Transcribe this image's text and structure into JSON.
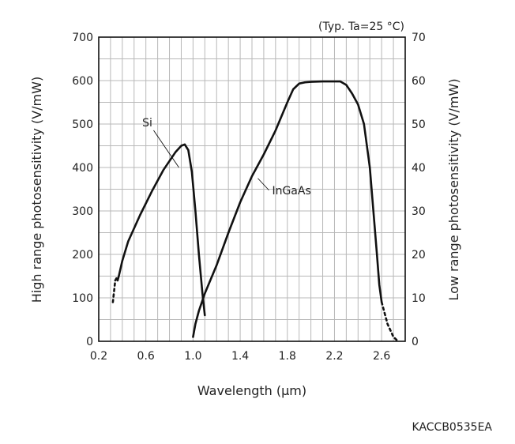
{
  "chart_data": {
    "type": "line",
    "condition_note": "(Typ. Ta=25 °C)",
    "xlabel": "Wavelength (µm)",
    "ylabel_left": "High range photosensitivity (V/mW)",
    "ylabel_right": "Low range photosensitivity (V/mW)",
    "xlim": [
      0.2,
      2.8
    ],
    "ylim_left": [
      0,
      700
    ],
    "ylim_right": [
      0,
      70
    ],
    "x_ticks": [
      "0.2",
      "0.6",
      "1.0",
      "1.4",
      "1.8",
      "2.2",
      "2.6"
    ],
    "x_tick_values": [
      0.2,
      0.6,
      1.0,
      1.4,
      1.8,
      2.2,
      2.6
    ],
    "y_ticks_left": [
      "0",
      "100",
      "200",
      "300",
      "400",
      "500",
      "600",
      "700"
    ],
    "y_tick_values_left": [
      0,
      100,
      200,
      300,
      400,
      500,
      600,
      700
    ],
    "y_ticks_right": [
      "0",
      "10",
      "20",
      "30",
      "40",
      "50",
      "60",
      "70"
    ],
    "y_tick_values_right": [
      0,
      10,
      20,
      30,
      40,
      50,
      60,
      70
    ],
    "grid": true,
    "series": [
      {
        "name": "Si",
        "axis": "left",
        "dashed_start": [
          [
            0.32,
            90
          ],
          [
            0.34,
            140
          ]
        ],
        "x": [
          0.34,
          0.35,
          0.36,
          0.37,
          0.4,
          0.45,
          0.55,
          0.65,
          0.75,
          0.85,
          0.9,
          0.93,
          0.96,
          0.99,
          1.02,
          1.05,
          1.08,
          1.1
        ],
        "y": [
          140,
          145,
          140,
          150,
          185,
          230,
          290,
          345,
          395,
          435,
          450,
          453,
          440,
          390,
          300,
          200,
          110,
          60
        ]
      },
      {
        "name": "InGaAs",
        "axis": "left",
        "x": [
          1.0,
          1.02,
          1.05,
          1.1,
          1.2,
          1.3,
          1.4,
          1.5,
          1.6,
          1.7,
          1.8,
          1.85,
          1.9,
          1.95,
          2.0,
          2.1,
          2.2,
          2.25,
          2.3,
          2.35,
          2.4,
          2.45,
          2.5,
          2.53,
          2.56,
          2.58,
          2.6
        ],
        "y": [
          10,
          40,
          70,
          110,
          175,
          250,
          320,
          380,
          430,
          485,
          550,
          580,
          593,
          596,
          597,
          598,
          598,
          598,
          590,
          570,
          545,
          500,
          400,
          300,
          200,
          130,
          90
        ],
        "dashed_end": [
          [
            2.6,
            90
          ],
          [
            2.65,
            40
          ],
          [
            2.7,
            10
          ],
          [
            2.74,
            0
          ]
        ]
      }
    ],
    "annotations": [
      {
        "text": "Si",
        "target_x": 0.88,
        "target_y": 400
      },
      {
        "text": "InGaAs",
        "target_x": 1.55,
        "target_y": 375
      }
    ]
  },
  "figure_code": "KACCB0535EA"
}
